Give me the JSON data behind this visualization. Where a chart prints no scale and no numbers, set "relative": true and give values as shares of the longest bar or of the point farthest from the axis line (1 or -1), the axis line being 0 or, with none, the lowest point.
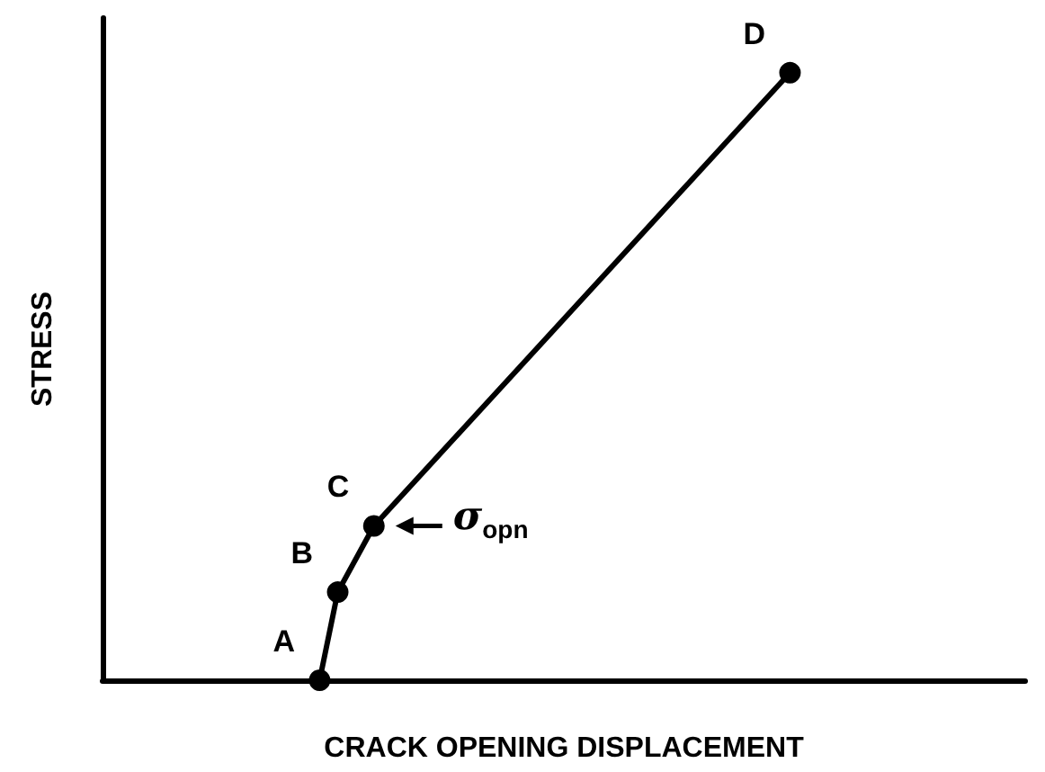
{
  "chart_data": {
    "type": "line",
    "relative": true,
    "xlabel": "CRACK OPENING DISPLACEMENT",
    "ylabel": "STRESS",
    "categories": [
      null,
      null,
      null,
      null,
      null,
      null,
      null,
      null,
      null,
      null,
      null,
      null,
      null,
      null,
      null,
      null,
      null,
      null,
      null,
      null,
      null,
      null,
      null,
      null,
      null,
      null,
      null,
      null,
      null,
      null,
      null,
      null,
      null,
      null,
      null,
      null,
      null,
      null,
      null,
      null,
      null,
      null,
      null,
      null,
      null,
      null,
      null,
      null,
      null,
      null,
      null,
      null
    ],
    "values": [
      null,
      null,
      null,
      null,
      null,
      null,
      null,
      null,
      null,
      null,
      null,
      null,
      0,
      0.145,
      null,
      0.254,
      null,
      null,
      null,
      null,
      null,
      null,
      null,
      null,
      null,
      null,
      null,
      null,
      null,
      null,
      null,
      null,
      null,
      null,
      null,
      null,
      null,
      null,
      1,
      null,
      null,
      null,
      null,
      null,
      null,
      null,
      null,
      null,
      null,
      null,
      null,
      null
    ],
    "color": "#000000",
    "marker": "circle",
    "line_style": "solid",
    "grid": false,
    "annotations": [
      "A",
      "B",
      "C",
      "D",
      "σ$_{opn}$"
    ]
  }
}
